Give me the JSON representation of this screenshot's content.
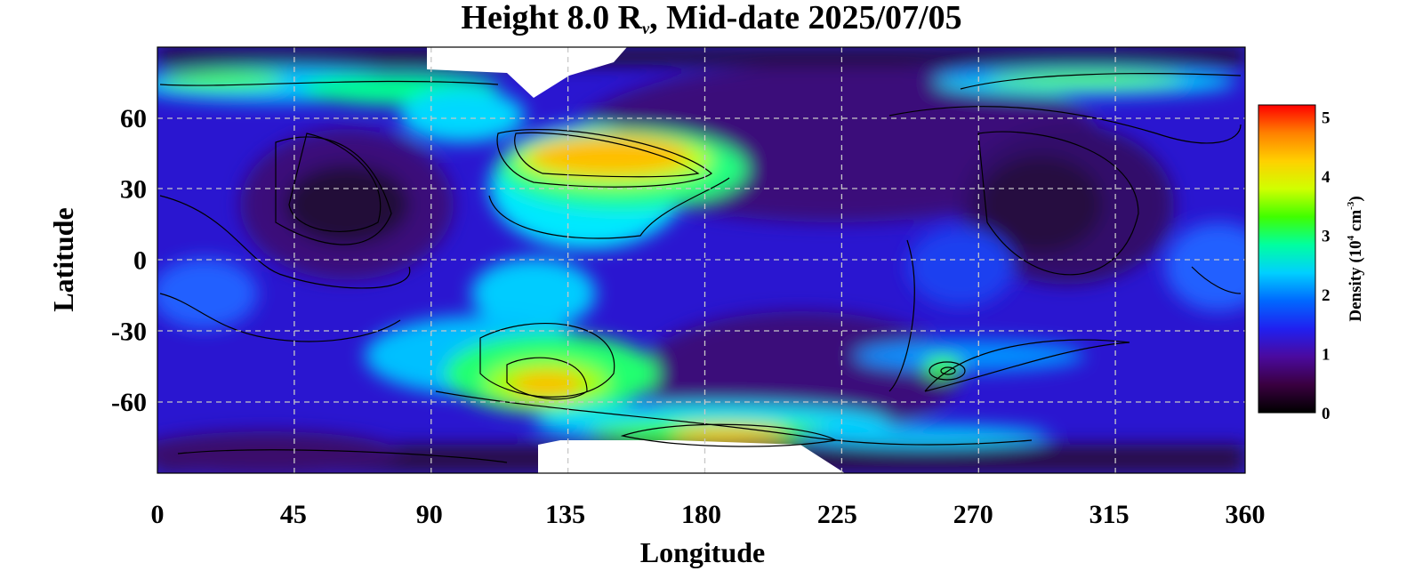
{
  "chart_data": {
    "type": "heatmap",
    "title": {
      "prefix": "Height 8.0 R",
      "subscript": "ν",
      "suffix": ", Mid-date 2025/07/05"
    },
    "xlabel": "Longitude",
    "ylabel": "Latitude",
    "xlim": [
      0,
      360
    ],
    "ylim": [
      -90,
      90
    ],
    "xticks": [
      "0",
      "45",
      "90",
      "135",
      "180",
      "225",
      "270",
      "315",
      "360"
    ],
    "yticks": [
      "60",
      "30",
      "0",
      "-30",
      "-60"
    ],
    "grid": true,
    "colorbar": {
      "label_prefix": "Density (10",
      "label_exp": "4",
      "label_unit": " cm",
      "label_unit_exp": "-3",
      "label_suffix": ")",
      "range": [
        0,
        5.2
      ],
      "ticks": [
        "5",
        "4",
        "3",
        "2",
        "1",
        "0"
      ],
      "colors": [
        "#000000",
        "#3a0040",
        "#4b0a9e",
        "#2020f0",
        "#0068ff",
        "#00d0ff",
        "#00ffa0",
        "#40ff00",
        "#d0ff00",
        "#ffd000",
        "#ff8000",
        "#ff0000"
      ]
    },
    "features": [
      {
        "lon": 150,
        "lat": 44,
        "value": 4.6
      },
      {
        "lon": 132,
        "lat": -55,
        "value": 4.4
      },
      {
        "lon": 195,
        "lat": -75,
        "value": 4.5
      },
      {
        "lon": 300,
        "lat": 80,
        "value": 3.4
      },
      {
        "lon": 40,
        "lat": 80,
        "value": 3.0
      },
      {
        "lon": 262,
        "lat": -47,
        "value": 3.2
      },
      {
        "lon": 55,
        "lat": 20,
        "value": 0.4
      },
      {
        "lon": 310,
        "lat": 25,
        "value": 0.5
      },
      {
        "lon": 210,
        "lat": -45,
        "value": 0.6
      }
    ]
  }
}
